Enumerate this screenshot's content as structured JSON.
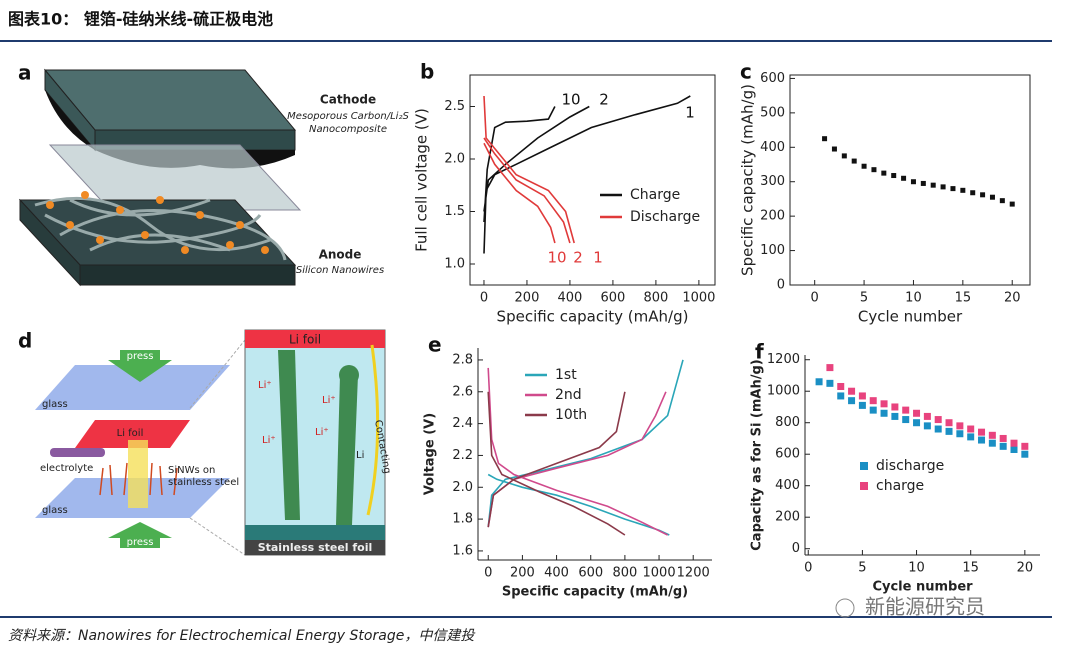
{
  "header": {
    "title": "图表10： 锂箔-硅纳米线-硫正极电池"
  },
  "diagram_a": {
    "panel": "a",
    "cathode": "Cathode",
    "cathode_desc_1": "Mesoporous Carbon/Li₂S",
    "cathode_desc_2": "Nanocomposite",
    "anode": "Anode",
    "anode_desc": "Silicon Nanowires"
  },
  "diagram_d": {
    "panel": "d",
    "press_top": "press",
    "glass_top": "glass",
    "li_foil": "Li foil",
    "electrolyte": "electrolyte",
    "sinws_1": "SiNWs on",
    "sinws_2": "stainless steel",
    "glass_bottom": "glass",
    "press_bottom": "press",
    "li_foil_zoom": "Li foil",
    "li_ion_1": "Li⁺",
    "li_ion_2": "Li⁺",
    "li_ion_3": "Li⁺",
    "li_ion_4": "Li⁺",
    "li": "Li",
    "contacting": "Contacting",
    "steel_foil": "Stainless steel foil"
  },
  "chart_data": [
    {
      "type": "line",
      "panel": "b",
      "xlabel": "Specific capacity (mAh/g)",
      "ylabel": "Full cell voltage (V)",
      "xlim": [
        -65,
        1075
      ],
      "ylim": [
        0.8,
        2.8
      ],
      "xticks": [
        0,
        200,
        400,
        600,
        800,
        1000
      ],
      "yticks": [
        {
          "value": 1,
          "label": "1.0"
        },
        1.5,
        {
          "value": 2,
          "label": "2.0"
        },
        2.5
      ],
      "series": [
        {
          "name": "Charge",
          "color": "#111111",
          "x": [
            0,
            10,
            50,
            150,
            300,
            500,
            700,
            900,
            960,
            null,
            0,
            20,
            100,
            250,
            400,
            490,
            null,
            0,
            15,
            50,
            100,
            200,
            300,
            330
          ],
          "values": [
            1.1,
            1.7,
            1.85,
            1.95,
            2.1,
            2.3,
            2.42,
            2.53,
            2.6,
            null,
            1.5,
            1.8,
            1.95,
            2.2,
            2.4,
            2.5,
            null,
            1.4,
            1.9,
            2.3,
            2.35,
            2.36,
            2.38,
            2.5
          ]
        },
        {
          "name": "Discharge",
          "color": "#e03a3a",
          "x": [
            0,
            10,
            50,
            150,
            300,
            380,
            420,
            null,
            0,
            50,
            150,
            280,
            370,
            400,
            null,
            0,
            50,
            150,
            250,
            310,
            330
          ],
          "values": [
            2.6,
            2.2,
            2.1,
            1.85,
            1.7,
            1.5,
            1.2,
            null,
            2.2,
            2.05,
            1.8,
            1.65,
            1.4,
            1.2,
            null,
            2.15,
            1.95,
            1.7,
            1.55,
            1.35,
            1.2
          ]
        }
      ],
      "annotations": [
        "10",
        "2",
        "1",
        "10",
        "2",
        "1"
      ]
    },
    {
      "type": "scatter",
      "panel": "c",
      "xlabel": "Cycle number",
      "ylabel": "Specific capacity (mAh/g)",
      "xlim": [
        -2.5,
        21.8
      ],
      "ylim": [
        0,
        610
      ],
      "xticks": [
        0,
        5,
        10,
        15,
        20
      ],
      "yticks": [
        0,
        100,
        200,
        300,
        400,
        500,
        600
      ],
      "series": [
        {
          "name": null,
          "color": "#111111",
          "x": [
            1,
            2,
            3,
            4,
            5,
            6,
            7,
            8,
            9,
            10,
            11,
            12,
            13,
            14,
            15,
            16,
            17,
            18,
            19,
            20
          ],
          "values": [
            425,
            395,
            375,
            360,
            345,
            335,
            325,
            318,
            310,
            300,
            295,
            290,
            285,
            280,
            275,
            268,
            262,
            255,
            245,
            235
          ]
        }
      ]
    },
    {
      "type": "line",
      "panel": "e",
      "xlabel": "Specific capacity (mAh/g)",
      "ylabel": "Voltage (V)",
      "xlim": [
        -60,
        1310
      ],
      "ylim": [
        1.543,
        2.875
      ],
      "xticks": [
        0,
        200,
        400,
        600,
        800,
        1000,
        1200
      ],
      "yticks": [
        1.6,
        1.8,
        {
          "value": 2,
          "label": "2.0"
        },
        2.2,
        2.4,
        2.6,
        2.8
      ],
      "series": [
        {
          "name": "1st",
          "color": "#2aa6b8",
          "x": [
            0,
            50,
            200,
            400,
            600,
            800,
            1000,
            1060,
            null,
            0,
            20,
            100,
            300,
            600,
            900,
            1050,
            1140
          ],
          "values": [
            2.08,
            2.05,
            2.0,
            1.95,
            1.88,
            1.8,
            1.73,
            1.7,
            null,
            1.75,
            1.95,
            2.05,
            2.1,
            2.18,
            2.3,
            2.45,
            2.8
          ]
        },
        {
          "name": "2nd",
          "color": "#d04a8c",
          "x": [
            0,
            20,
            60,
            150,
            400,
            700,
            900,
            1050,
            null,
            0,
            30,
            150,
            400,
            700,
            900,
            980,
            1040
          ],
          "values": [
            2.75,
            2.3,
            2.15,
            2.08,
            1.98,
            1.88,
            1.78,
            1.7,
            null,
            1.75,
            1.95,
            2.05,
            2.12,
            2.2,
            2.3,
            2.45,
            2.6
          ]
        },
        {
          "name": "10th",
          "color": "#8b3a4a",
          "x": [
            0,
            20,
            80,
            300,
            500,
            700,
            800,
            null,
            0,
            30,
            150,
            400,
            650,
            750,
            800
          ],
          "values": [
            2.6,
            2.2,
            2.08,
            1.97,
            1.88,
            1.77,
            1.7,
            null,
            1.75,
            1.95,
            2.05,
            2.15,
            2.25,
            2.35,
            2.6
          ]
        }
      ]
    },
    {
      "type": "scatter",
      "panel": "f",
      "xlabel": "Cycle number",
      "ylabel": "Capacity as for Si (mAh/g)",
      "xlim": [
        -0.3,
        21.4
      ],
      "ylim": [
        -40,
        1230
      ],
      "xticks": [
        0,
        5,
        10,
        15,
        20
      ],
      "yticks": [
        0,
        200,
        400,
        600,
        800,
        1000,
        1200
      ],
      "series": [
        {
          "name": "discharge",
          "color": "#1a8fc4",
          "x": [
            1,
            2,
            3,
            4,
            5,
            6,
            7,
            8,
            9,
            10,
            11,
            12,
            13,
            14,
            15,
            16,
            17,
            18,
            19,
            20
          ],
          "values": [
            1060,
            1050,
            970,
            940,
            910,
            880,
            860,
            840,
            820,
            800,
            780,
            760,
            745,
            730,
            710,
            690,
            670,
            650,
            630,
            600
          ]
        },
        {
          "name": "charge",
          "color": "#e8437e",
          "x": [
            2,
            3,
            4,
            5,
            6,
            7,
            8,
            9,
            10,
            11,
            12,
            13,
            14,
            15,
            16,
            17,
            18,
            19,
            20
          ],
          "values": [
            1150,
            1030,
            1000,
            970,
            940,
            920,
            900,
            880,
            860,
            840,
            820,
            800,
            780,
            760,
            740,
            720,
            700,
            670,
            650
          ]
        }
      ]
    }
  ],
  "source": "资料来源：Nanowires for Electrochemical Energy Storage，中信建投",
  "watermark": "新能源研究员"
}
